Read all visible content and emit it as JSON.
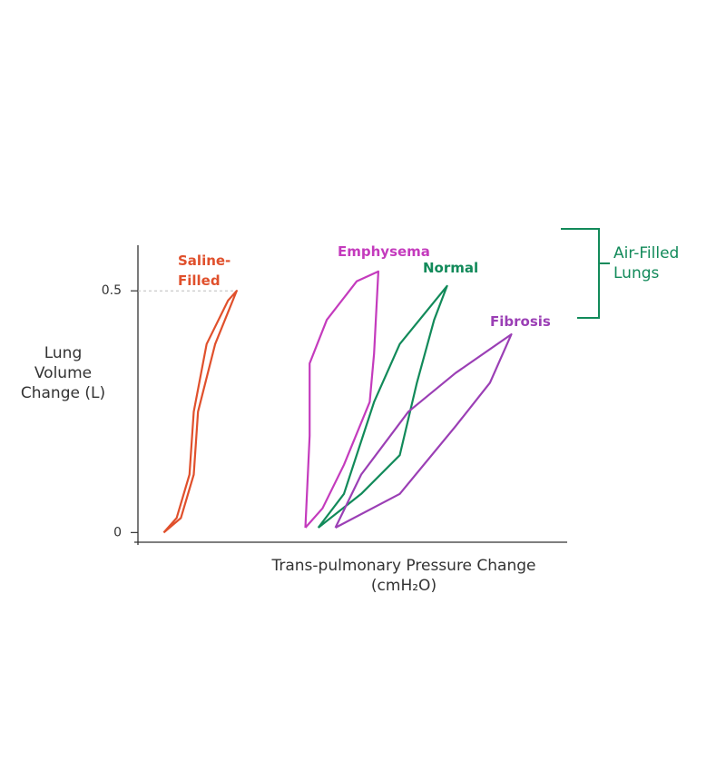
{
  "chart_data": {
    "type": "line",
    "ylabel": "Lung Volume Change (L)",
    "xlabel": "Trans-pulmonary Pressure Change (cmH₂O)",
    "annotation": "Air-Filled Lungs",
    "xlim": [
      0,
      10
    ],
    "ylim": [
      -0.02,
      0.6
    ],
    "yticks": [
      0,
      0.5
    ],
    "series": [
      {
        "name": "Saline-Filled",
        "color": "#e0502c",
        "x": [
          0.6,
          1.0,
          1.3,
          1.4,
          1.8,
          2.3,
          2.1,
          1.6,
          1.3,
          1.2,
          0.9,
          0.6
        ],
        "values": [
          0,
          0.03,
          0.12,
          0.25,
          0.39,
          0.5,
          0.48,
          0.39,
          0.25,
          0.12,
          0.03,
          0
        ]
      },
      {
        "name": "Emphysema",
        "color": "#c43bbd",
        "x": [
          3.9,
          4.0,
          4.0,
          4.4,
          5.1,
          5.6,
          5.5,
          5.4,
          4.8,
          4.3,
          3.9
        ],
        "values": [
          0.01,
          0.2,
          0.35,
          0.44,
          0.52,
          0.54,
          0.37,
          0.27,
          0.14,
          0.05,
          0.01
        ]
      },
      {
        "name": "Normal",
        "color": "#128a5a",
        "x": [
          4.2,
          4.8,
          5.5,
          6.1,
          7.2,
          6.9,
          6.5,
          6.1,
          5.2,
          4.2
        ],
        "values": [
          0.01,
          0.08,
          0.27,
          0.39,
          0.51,
          0.44,
          0.31,
          0.16,
          0.08,
          0.01
        ]
      },
      {
        "name": "Fibrosis",
        "color": "#9b3fb5",
        "x": [
          4.6,
          5.2,
          6.3,
          7.4,
          8.7,
          8.2,
          7.4,
          6.1,
          4.6
        ],
        "values": [
          0.01,
          0.12,
          0.25,
          0.33,
          0.41,
          0.31,
          0.22,
          0.08,
          0.01
        ]
      }
    ]
  }
}
